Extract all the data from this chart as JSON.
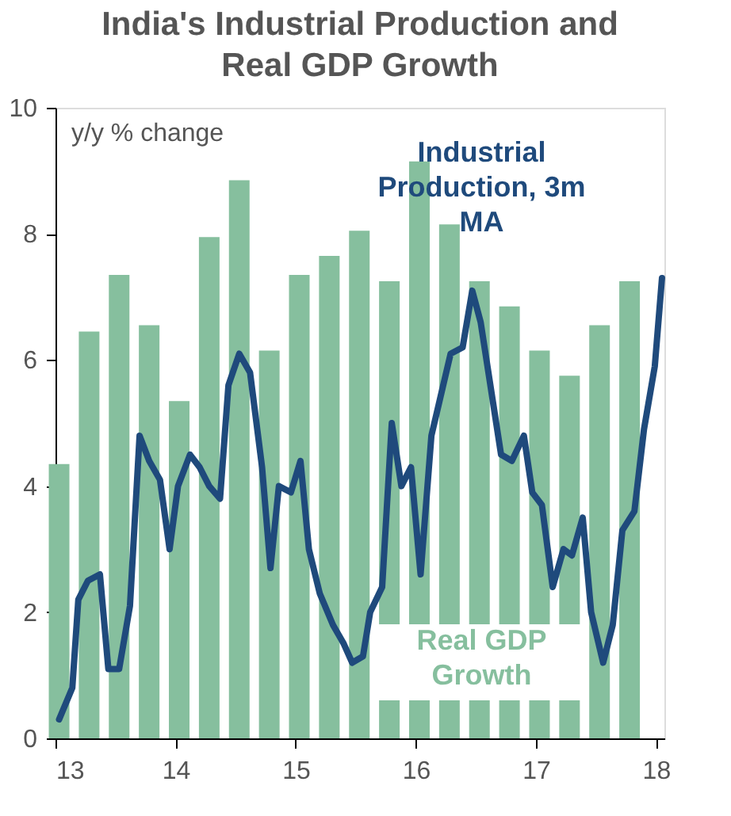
{
  "chart_data": {
    "type": "bar",
    "title": "India's Industrial Production and Real GDP Growth",
    "annotations": [
      "y/y % change"
    ],
    "xlim": [
      13,
      18.07
    ],
    "xticks": [
      13,
      14,
      15,
      16,
      17,
      18
    ],
    "ylim": [
      0,
      10
    ],
    "yticks": [
      0,
      2,
      4,
      6,
      8,
      10
    ],
    "grid": false,
    "legend": false,
    "series": [
      {
        "name": "Real GDP Growth",
        "color": "#86bf9e",
        "x": [
          13.03,
          13.28,
          13.53,
          13.78,
          14.03,
          14.28,
          14.53,
          14.78,
          15.03,
          15.28,
          15.53,
          15.78,
          16.03,
          16.28,
          16.53,
          16.78,
          17.03,
          17.28,
          17.53,
          17.78
        ],
        "values": [
          4.35,
          6.45,
          7.35,
          6.55,
          5.35,
          7.95,
          8.85,
          6.15,
          7.35,
          7.65,
          8.05,
          7.25,
          9.15,
          8.15,
          7.25,
          6.85,
          6.15,
          5.75,
          6.55,
          7.25
        ]
      },
      {
        "name": "Industrial Production, 3m MA",
        "type": "line",
        "color": "#1f4a7c",
        "x": [
          13.03,
          13.14,
          13.19,
          13.27,
          13.37,
          13.44,
          13.53,
          13.62,
          13.7,
          13.78,
          13.87,
          13.95,
          14.02,
          14.12,
          14.2,
          14.28,
          14.37,
          14.44,
          14.53,
          14.62,
          14.72,
          14.79,
          14.86,
          14.96,
          15.04,
          15.11,
          15.2,
          15.31,
          15.4,
          15.47,
          15.56,
          15.62,
          15.72,
          15.8,
          15.88,
          15.96,
          16.04,
          16.13,
          16.29,
          16.39,
          16.47,
          16.54,
          16.71,
          16.8,
          16.9,
          16.97,
          17.05,
          17.14,
          17.23,
          17.3,
          17.39,
          17.46,
          17.56,
          17.64,
          17.72,
          17.82,
          17.9,
          17.99,
          18.05
        ],
        "values": [
          0.3,
          0.8,
          2.2,
          2.5,
          2.6,
          1.1,
          1.1,
          2.1,
          4.8,
          4.4,
          4.1,
          3.0,
          4.0,
          4.5,
          4.3,
          4.0,
          3.8,
          5.6,
          6.1,
          5.8,
          4.3,
          2.7,
          4.0,
          3.9,
          4.4,
          3.0,
          2.3,
          1.8,
          1.5,
          1.2,
          1.3,
          2.0,
          2.4,
          5.0,
          4.0,
          4.3,
          2.6,
          4.8,
          6.1,
          6.2,
          7.1,
          6.6,
          4.5,
          4.4,
          4.8,
          3.9,
          3.7,
          2.4,
          3.0,
          2.9,
          3.5,
          2.0,
          1.2,
          1.8,
          3.3,
          3.6,
          4.9,
          5.9,
          7.3
        ]
      }
    ]
  }
}
